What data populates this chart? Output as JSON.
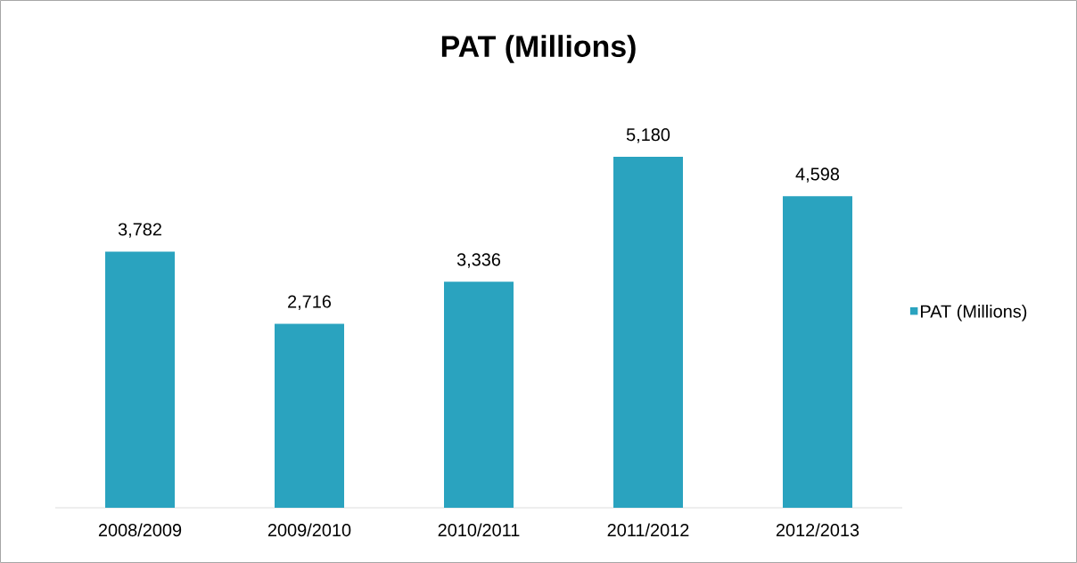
{
  "chart_data": {
    "type": "bar",
    "title": "PAT (Millions)",
    "categories": [
      "2008/2009",
      "2009/2010",
      "2010/2011",
      "2011/2012",
      "2012/2013"
    ],
    "series": [
      {
        "name": "PAT (Millions)",
        "color": "#2aa3bf",
        "values": [
          3782,
          2716,
          3336,
          5180,
          4598
        ],
        "value_labels": [
          "3,782",
          "2,716",
          "3,336",
          "5,180",
          "4,598"
        ]
      }
    ],
    "legend": "right"
  }
}
